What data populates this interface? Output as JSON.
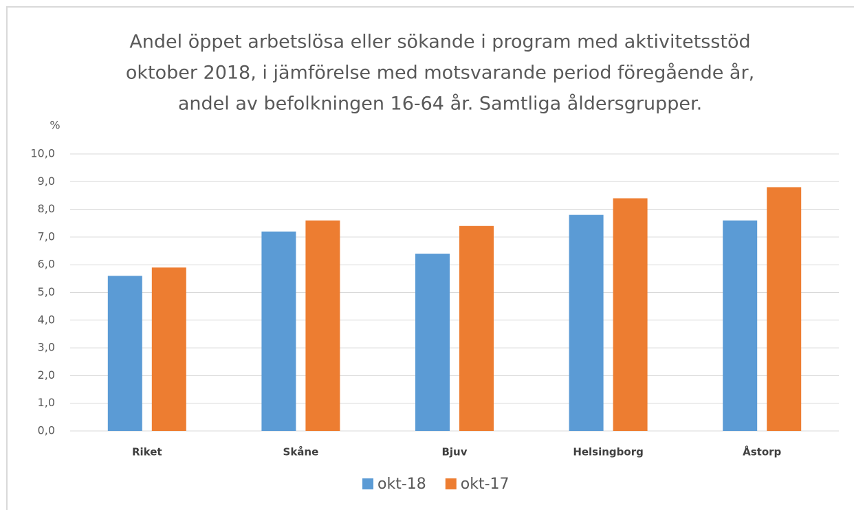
{
  "chart_data": {
    "type": "bar",
    "title": [
      "Andel öppet arbetslösa eller sökande i program med aktivitetsstöd",
      "oktober 2018, i jämförelse med motsvarande period föregående år,",
      "andel av befolkningen 16-64 år. Samtliga åldersgrupper."
    ],
    "y_label": "%",
    "categories": [
      "Riket",
      "Skåne",
      "Bjuv",
      "Helsingborg",
      "Åstorp"
    ],
    "series": [
      {
        "name": "okt-18",
        "color": "#5b9bd5",
        "values": [
          5.6,
          7.2,
          6.4,
          7.8,
          7.6
        ]
      },
      {
        "name": "okt-17",
        "color": "#ed7d31",
        "values": [
          5.9,
          7.6,
          7.4,
          8.4,
          8.8
        ]
      }
    ],
    "ylim": [
      0,
      10
    ],
    "yticks": [
      {
        "value": 0,
        "label": "0,0"
      },
      {
        "value": 1,
        "label": "1,0"
      },
      {
        "value": 2,
        "label": "2,0"
      },
      {
        "value": 3,
        "label": "3,0"
      },
      {
        "value": 4,
        "label": "4,0"
      },
      {
        "value": 5,
        "label": "5,0"
      },
      {
        "value": 6,
        "label": "6,0"
      },
      {
        "value": 7,
        "label": "7,0"
      },
      {
        "value": 8,
        "label": "8,0"
      },
      {
        "value": 9,
        "label": "9,0"
      },
      {
        "value": 10,
        "label": "10,0"
      }
    ],
    "grid": true,
    "legend": "bottom"
  }
}
